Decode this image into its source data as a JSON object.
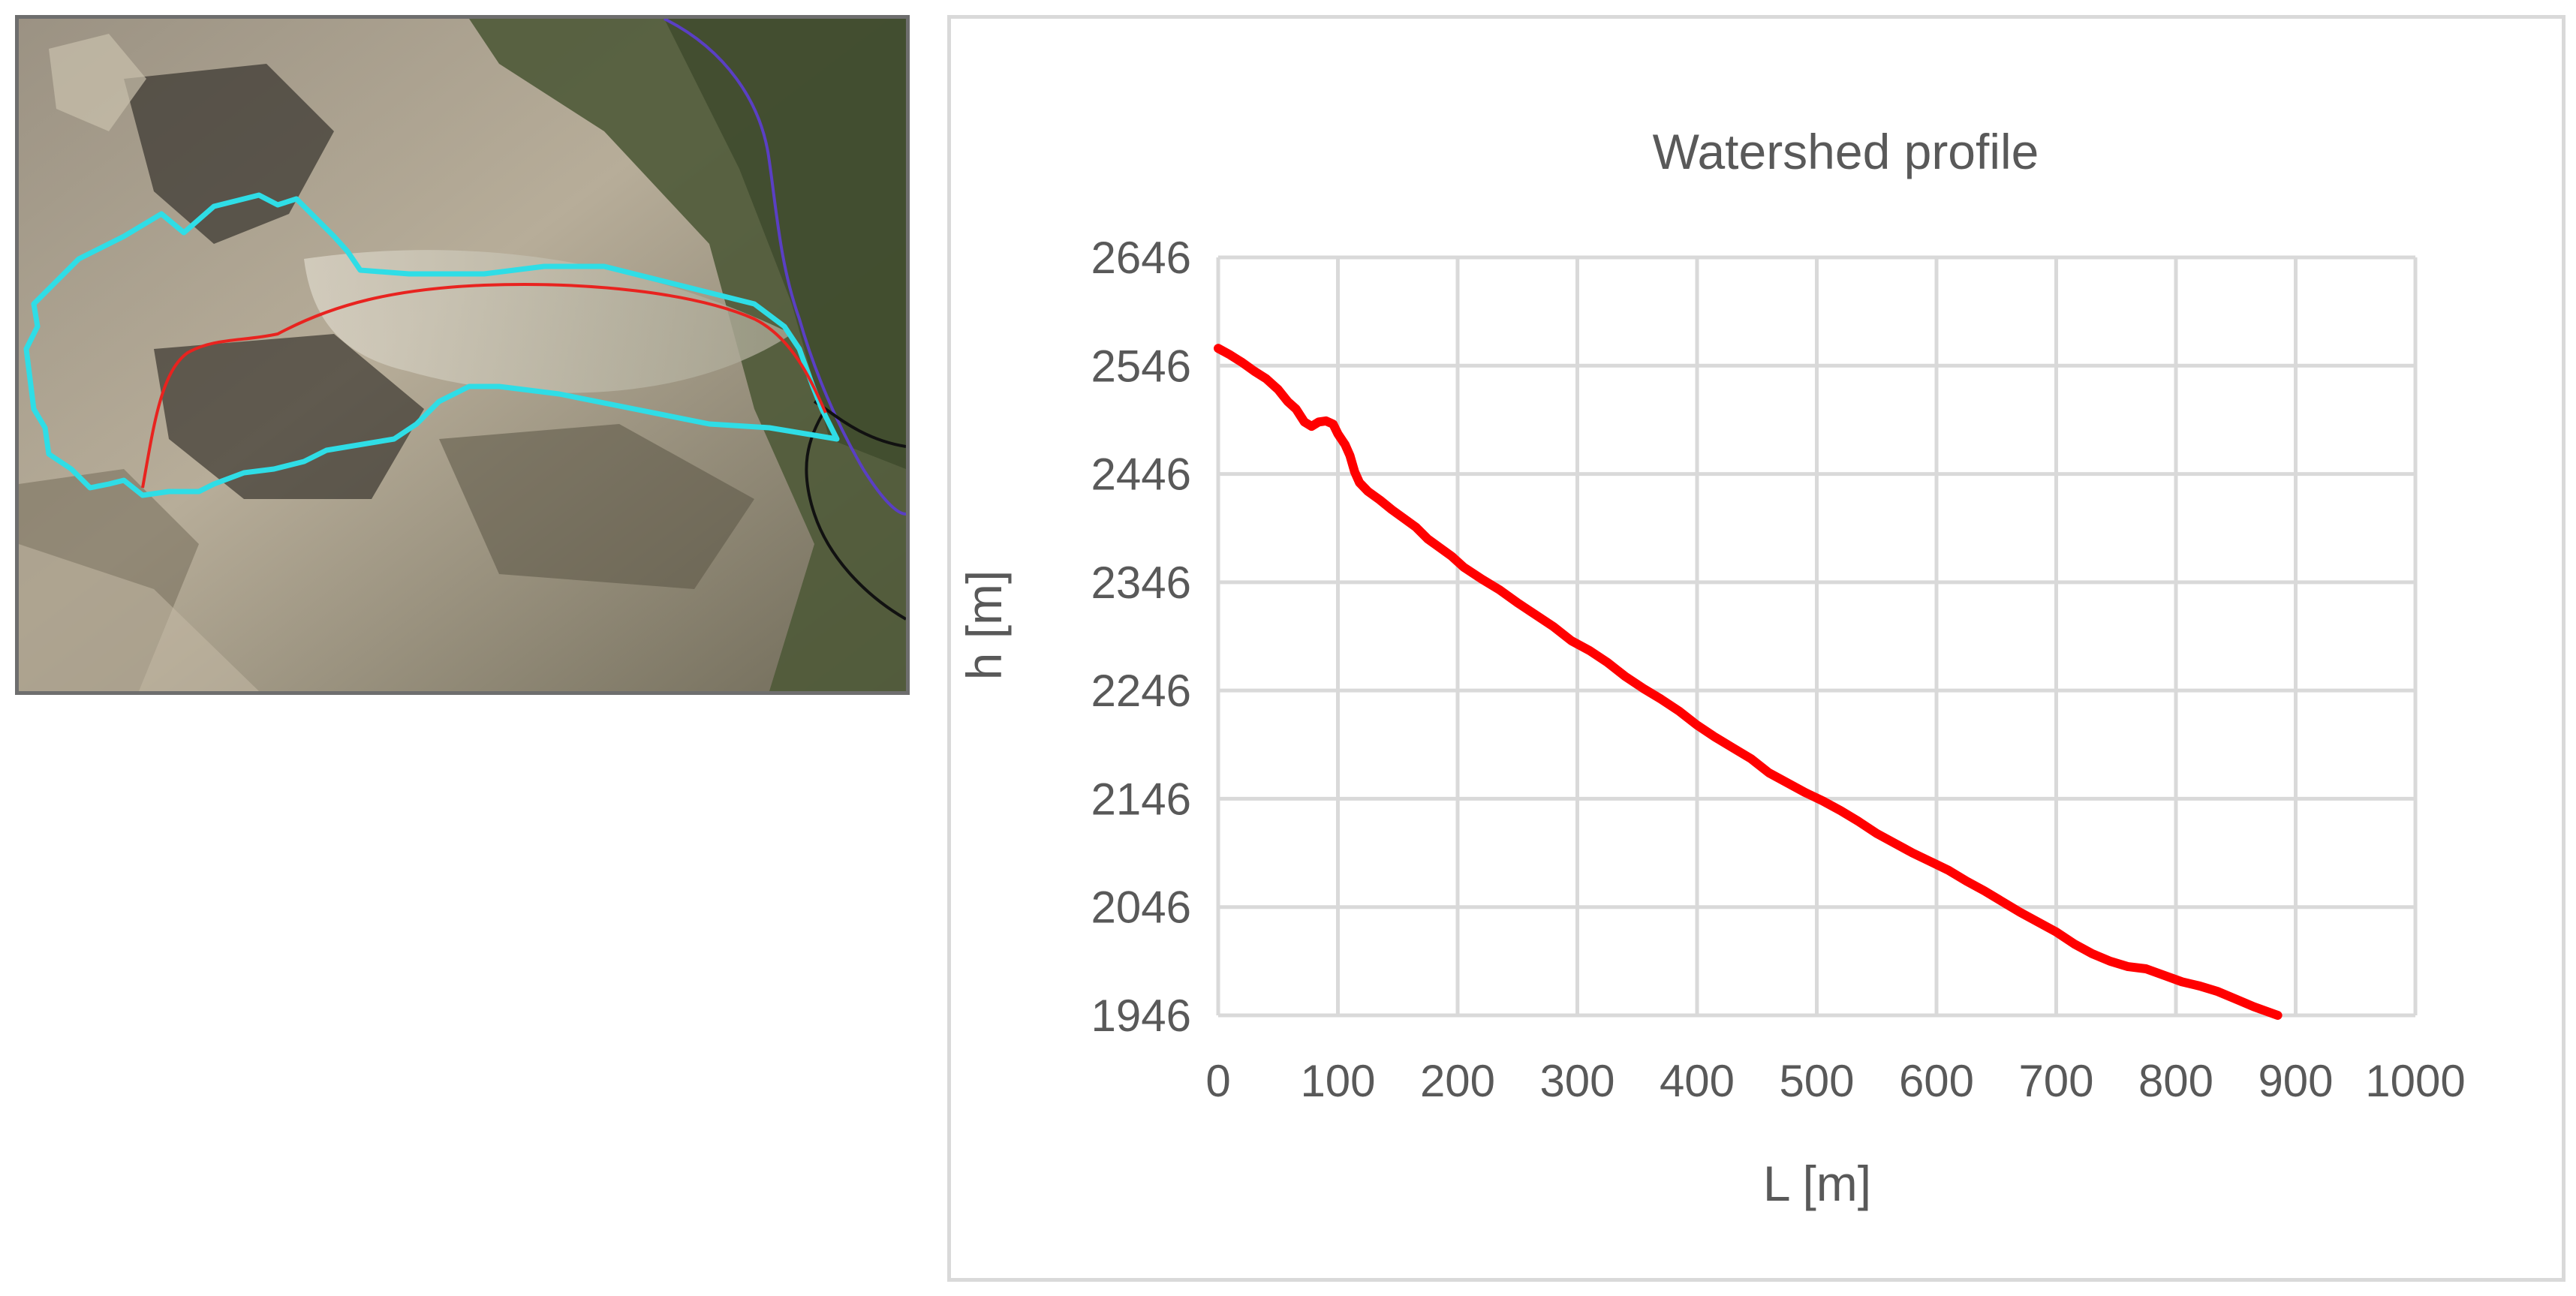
{
  "map": {
    "colors": {
      "watershed_boundary": "#2fdde6",
      "flow_path": "#e8231f",
      "stream": "#5a3fc4",
      "outlet_boundary": "#111111"
    }
  },
  "chart_data": {
    "type": "line",
    "title": "Watershed profile",
    "xlabel": "L [m]",
    "ylabel": "h [m]",
    "xlim": [
      0,
      1000
    ],
    "ylim": [
      1946,
      2646
    ],
    "x_ticks": [
      0,
      100,
      200,
      300,
      400,
      500,
      600,
      700,
      800,
      900,
      1000
    ],
    "y_ticks": [
      1946,
      2046,
      2146,
      2246,
      2346,
      2446,
      2546,
      2646
    ],
    "grid": true,
    "series": [
      {
        "color": "#ff0000",
        "points": [
          [
            0,
            2562
          ],
          [
            10,
            2556
          ],
          [
            20,
            2549
          ],
          [
            30,
            2541
          ],
          [
            40,
            2534
          ],
          [
            50,
            2524
          ],
          [
            58,
            2513
          ],
          [
            65,
            2506
          ],
          [
            72,
            2494
          ],
          [
            78,
            2490
          ],
          [
            84,
            2494
          ],
          [
            90,
            2495
          ],
          [
            96,
            2492
          ],
          [
            100,
            2483
          ],
          [
            106,
            2473
          ],
          [
            110,
            2463
          ],
          [
            114,
            2448
          ],
          [
            118,
            2438
          ],
          [
            125,
            2430
          ],
          [
            135,
            2422
          ],
          [
            145,
            2413
          ],
          [
            155,
            2405
          ],
          [
            165,
            2397
          ],
          [
            175,
            2386
          ],
          [
            185,
            2378
          ],
          [
            195,
            2370
          ],
          [
            205,
            2360
          ],
          [
            220,
            2349
          ],
          [
            235,
            2339
          ],
          [
            250,
            2327
          ],
          [
            265,
            2316
          ],
          [
            280,
            2305
          ],
          [
            295,
            2292
          ],
          [
            310,
            2283
          ],
          [
            325,
            2272
          ],
          [
            340,
            2259
          ],
          [
            355,
            2248
          ],
          [
            370,
            2238
          ],
          [
            385,
            2227
          ],
          [
            400,
            2214
          ],
          [
            415,
            2203
          ],
          [
            430,
            2193
          ],
          [
            445,
            2183
          ],
          [
            460,
            2170
          ],
          [
            475,
            2161
          ],
          [
            490,
            2152
          ],
          [
            505,
            2144
          ],
          [
            520,
            2135
          ],
          [
            535,
            2125
          ],
          [
            550,
            2114
          ],
          [
            565,
            2105
          ],
          [
            580,
            2096
          ],
          [
            595,
            2088
          ],
          [
            610,
            2080
          ],
          [
            625,
            2070
          ],
          [
            640,
            2061
          ],
          [
            655,
            2051
          ],
          [
            670,
            2041
          ],
          [
            685,
            2032
          ],
          [
            700,
            2023
          ],
          [
            715,
            2012
          ],
          [
            730,
            2003
          ],
          [
            745,
            1996
          ],
          [
            760,
            1991
          ],
          [
            775,
            1989
          ],
          [
            790,
            1983
          ],
          [
            805,
            1977
          ],
          [
            820,
            1973
          ],
          [
            835,
            1968
          ],
          [
            850,
            1961
          ],
          [
            865,
            1954
          ],
          [
            880,
            1948
          ],
          [
            885,
            1946
          ]
        ]
      }
    ]
  }
}
